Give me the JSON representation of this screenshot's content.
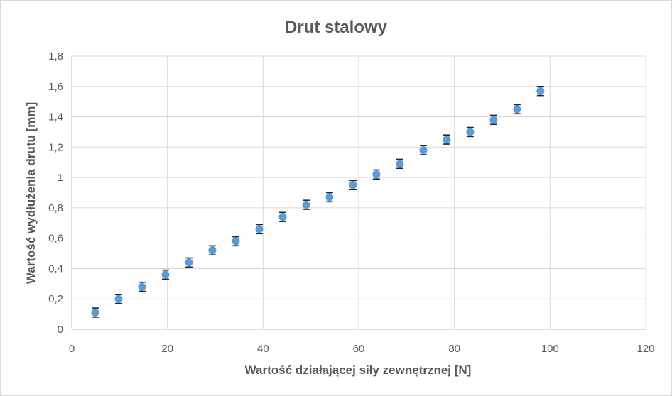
{
  "chart_data": {
    "type": "scatter",
    "title": "Drut stalowy",
    "xlabel": "Wartość działającej siły zewnętrznej [N]",
    "ylabel": "Wartość wydłużenia drutu [mm]",
    "xlim": [
      0,
      120
    ],
    "ylim": [
      0,
      1.8
    ],
    "xticks": [
      0,
      20,
      40,
      60,
      80,
      100,
      120
    ],
    "xtick_labels": [
      "0",
      "20",
      "40",
      "60",
      "80",
      "100",
      "120"
    ],
    "yticks": [
      0,
      0.2,
      0.4,
      0.6,
      0.8,
      1.0,
      1.2,
      1.4,
      1.6,
      1.8
    ],
    "ytick_labels": [
      "0",
      "0,2",
      "0,4",
      "0,6",
      "0,8",
      "1",
      "1,2",
      "1,4",
      "1,6",
      "1,8"
    ],
    "grid": true,
    "legend": "none",
    "error_y": 0.03,
    "series": [
      {
        "color": "#5b9bd5",
        "x": [
          4.9,
          9.8,
          14.7,
          19.6,
          24.5,
          29.4,
          34.3,
          39.2,
          44.1,
          49.0,
          53.9,
          58.8,
          63.7,
          68.6,
          73.5,
          78.4,
          83.3,
          88.2,
          93.1,
          98.0
        ],
        "y": [
          0.11,
          0.2,
          0.28,
          0.36,
          0.44,
          0.52,
          0.58,
          0.66,
          0.74,
          0.82,
          0.87,
          0.95,
          1.02,
          1.09,
          1.18,
          1.25,
          1.3,
          1.38,
          1.45,
          1.57
        ]
      }
    ]
  }
}
